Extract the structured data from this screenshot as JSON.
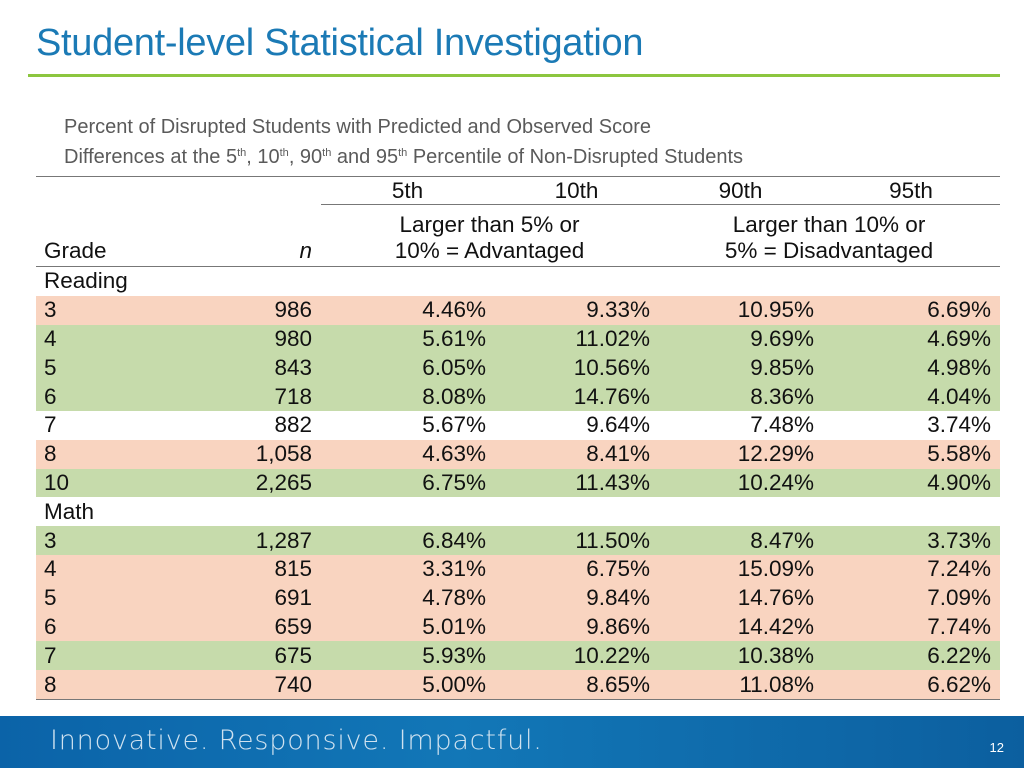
{
  "slide": {
    "title": "Student-level Statistical Investigation",
    "caption": {
      "line1": "Percent of Disrupted Students with Predicted and Observed Score",
      "line2_parts": [
        "Differences at the 5",
        "th",
        ", 10",
        "th",
        ", 90",
        "th",
        " and 95",
        "th",
        " Percentile of Non-Disrupted Students"
      ]
    },
    "footer": {
      "tagline": "Innovative.  Responsive.  Impactful.",
      "page_number": "12"
    }
  },
  "table": {
    "header": {
      "grade": "Grade",
      "n": "n",
      "percentiles": [
        "5th",
        "10th",
        "90th",
        "95th"
      ],
      "group_left": [
        "Larger than 5% or",
        "10% = Advantaged"
      ],
      "group_right": [
        "Larger than 10% or",
        "5% = Disadvantaged"
      ]
    },
    "sections": [
      {
        "label": "Reading",
        "rows": [
          {
            "grade": "3",
            "n": "986",
            "p5": "4.46%",
            "p10": "9.33%",
            "p90": "10.95%",
            "p95": "6.69%",
            "color": "salmon"
          },
          {
            "grade": "4",
            "n": "980",
            "p5": "5.61%",
            "p10": "11.02%",
            "p90": "9.69%",
            "p95": "4.69%",
            "color": "green"
          },
          {
            "grade": "5",
            "n": "843",
            "p5": "6.05%",
            "p10": "10.56%",
            "p90": "9.85%",
            "p95": "4.98%",
            "color": "green"
          },
          {
            "grade": "6",
            "n": "718",
            "p5": "8.08%",
            "p10": "14.76%",
            "p90": "8.36%",
            "p95": "4.04%",
            "color": "green"
          },
          {
            "grade": "7",
            "n": "882",
            "p5": "5.67%",
            "p10": "9.64%",
            "p90": "7.48%",
            "p95": "3.74%",
            "color": "white"
          },
          {
            "grade": "8",
            "n": "1,058",
            "p5": "4.63%",
            "p10": "8.41%",
            "p90": "12.29%",
            "p95": "5.58%",
            "color": "salmon"
          },
          {
            "grade": "10",
            "n": "2,265",
            "p5": "6.75%",
            "p10": "11.43%",
            "p90": "10.24%",
            "p95": "4.90%",
            "color": "green"
          }
        ]
      },
      {
        "label": "Math",
        "rows": [
          {
            "grade": "3",
            "n": "1,287",
            "p5": "6.84%",
            "p10": "11.50%",
            "p90": "8.47%",
            "p95": "3.73%",
            "color": "green"
          },
          {
            "grade": "4",
            "n": "815",
            "p5": "3.31%",
            "p10": "6.75%",
            "p90": "15.09%",
            "p95": "7.24%",
            "color": "salmon"
          },
          {
            "grade": "5",
            "n": "691",
            "p5": "4.78%",
            "p10": "9.84%",
            "p90": "14.76%",
            "p95": "7.09%",
            "color": "salmon"
          },
          {
            "grade": "6",
            "n": "659",
            "p5": "5.01%",
            "p10": "9.86%",
            "p90": "14.42%",
            "p95": "7.74%",
            "color": "salmon"
          },
          {
            "grade": "7",
            "n": "675",
            "p5": "5.93%",
            "p10": "10.22%",
            "p90": "10.38%",
            "p95": "6.22%",
            "color": "green"
          },
          {
            "grade": "8",
            "n": "740",
            "p5": "5.00%",
            "p10": "8.65%",
            "p90": "11.08%",
            "p95": "6.62%",
            "color": "salmon"
          }
        ]
      }
    ]
  },
  "colors": {
    "title": "#1b7ab5",
    "rule": "#8cc63f",
    "advantaged_row": "#f9d4c0",
    "disadvantaged_row": "#c6dbab",
    "footer": "#0b63a8"
  }
}
